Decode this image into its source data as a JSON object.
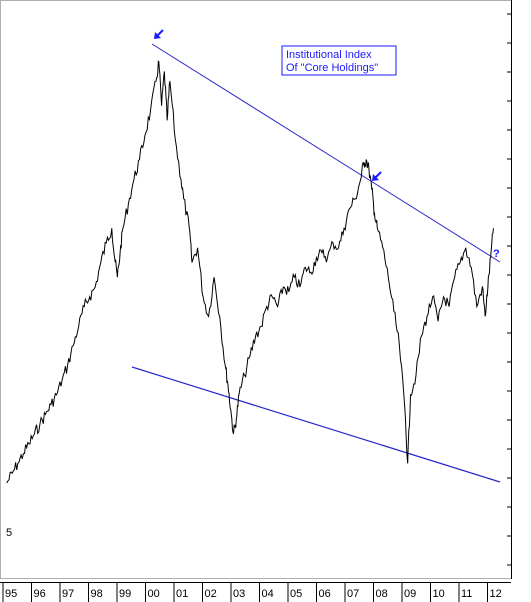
{
  "chart_data": {
    "type": "line",
    "title": "",
    "xlabel": "",
    "ylabel": "",
    "x_tick_labels": [
      "95",
      "96",
      "97",
      "98",
      "99",
      "00",
      "01",
      "02",
      "03",
      "04",
      "05",
      "06",
      "07",
      "08",
      "09",
      "10",
      "11",
      "12"
    ],
    "y_tick_labels": [
      "5"
    ],
    "x_range": [
      1994.5,
      2012.8
    ],
    "y_range": [
      0,
      100
    ],
    "grid": false,
    "annotation_box": {
      "line1": "Institutional Index",
      "line2": "Of  \"Core Holdings\""
    },
    "question_mark": "?",
    "series": [
      {
        "x": [
          1994.6,
          1994.8,
          1995.0,
          1995.2,
          1995.4,
          1995.6,
          1995.8,
          1996.0,
          1996.2,
          1996.4,
          1996.6,
          1996.8,
          1997.0,
          1997.2,
          1997.4,
          1997.6,
          1997.8,
          1998.0,
          1998.2,
          1998.4,
          1998.5,
          1998.6,
          1998.7,
          1998.8,
          1999.0,
          1999.2,
          1999.4,
          1999.6,
          1999.8,
          2000.0,
          2000.1,
          2000.2,
          2000.3,
          2000.4,
          2000.5,
          2000.7,
          2000.9,
          2001.0,
          2001.2,
          2001.3,
          2001.5,
          2001.7,
          2001.9,
          2002.1,
          2002.3,
          2002.5,
          2002.6,
          2002.7,
          2002.8,
          2002.9,
          2003.0,
          2003.2,
          2003.4,
          2003.6,
          2003.8,
          2004.0,
          2004.2,
          2004.4,
          2004.6,
          2004.8,
          2005.0,
          2005.2,
          2005.4,
          2005.6,
          2005.8,
          2006.0,
          2006.2,
          2006.4,
          2006.6,
          2006.8,
          2007.0,
          2007.2,
          2007.4,
          2007.5,
          2007.6,
          2007.7,
          2007.8,
          2007.9,
          2008.0,
          2008.2,
          2008.4,
          2008.6,
          2008.8,
          2009.0,
          2009.1,
          2009.2,
          2009.4,
          2009.6,
          2009.8,
          2010.0,
          2010.2,
          2010.4,
          2010.6,
          2010.8,
          2011.0,
          2011.2,
          2011.4,
          2011.6,
          2011.8,
          2011.9,
          2012.0,
          2012.1,
          2012.2
        ],
        "y": [
          10,
          12,
          14,
          16,
          18,
          20,
          22,
          24,
          26,
          28,
          31,
          34,
          38,
          42,
          46,
          48,
          50,
          55,
          59,
          62,
          56,
          52,
          57,
          62,
          67,
          72,
          76,
          81,
          86,
          92,
          96,
          87,
          94,
          84,
          92,
          80,
          72,
          68,
          62,
          55,
          58,
          48,
          44,
          52,
          44,
          34,
          30,
          25,
          20,
          23,
          28,
          32,
          36,
          40,
          42,
          46,
          48,
          46,
          50,
          49,
          52,
          50,
          54,
          53,
          56,
          57,
          56,
          59,
          58,
          62,
          66,
          68,
          72,
          75,
          76,
          74,
          70,
          65,
          62,
          58,
          52,
          45,
          38,
          25,
          14,
          28,
          32,
          40,
          44,
          48,
          43,
          48,
          46,
          52,
          55,
          58,
          54,
          46,
          50,
          44,
          50,
          56,
          62
        ]
      }
    ]
  }
}
